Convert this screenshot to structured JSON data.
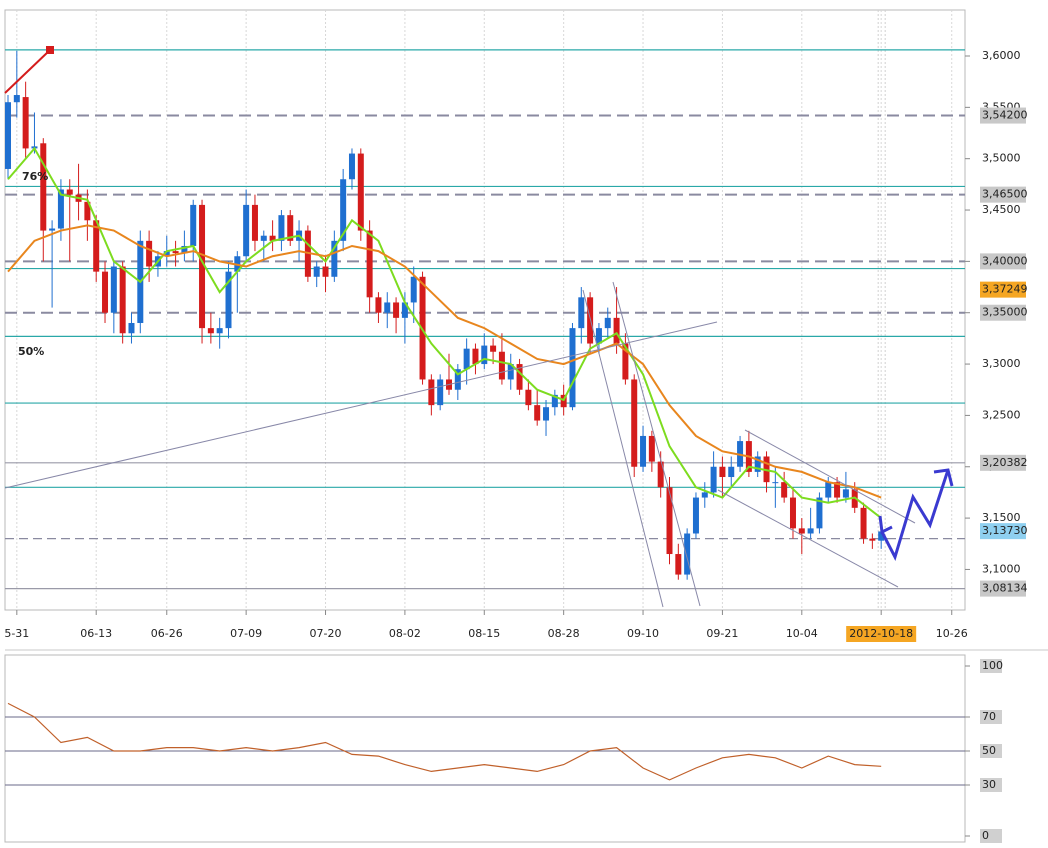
{
  "chart_data": [
    {
      "type": "candlestick",
      "categories": [
        null,
        "5-31",
        null,
        null,
        null,
        null,
        null,
        null,
        null,
        null,
        "06-13",
        null,
        null,
        null,
        null,
        null,
        null,
        null,
        "06-26",
        null,
        null,
        null,
        null,
        null,
        null,
        null,
        null,
        "07-09",
        null,
        null,
        null,
        null,
        null,
        null,
        null,
        null,
        "07-20",
        null,
        null,
        null,
        null,
        null,
        null,
        null,
        null,
        "08-02",
        null,
        null,
        null,
        null,
        null,
        null,
        null,
        null,
        "08-15",
        null,
        null,
        null,
        null,
        null,
        null,
        null,
        null,
        "08-28",
        null,
        null,
        null,
        null,
        null,
        null,
        null,
        null,
        "09-10",
        null,
        null,
        null,
        null,
        null,
        null,
        null,
        null,
        "09-21",
        null,
        null,
        null,
        null,
        null,
        null,
        null,
        null,
        "10-04",
        null,
        null,
        null,
        null,
        null,
        null,
        null,
        null,
        "2012-10-18",
        null,
        null,
        null,
        null,
        null,
        null,
        null,
        "10-26"
      ],
      "open": [
        3.49,
        3.555,
        3.56,
        3.51,
        3.515,
        3.43,
        3.432,
        3.47,
        3.465,
        3.458,
        3.44,
        3.39,
        3.35,
        3.395,
        3.33,
        3.34,
        3.42,
        3.395,
        3.405,
        3.41,
        3.408,
        3.415,
        3.455,
        3.335,
        3.33,
        3.335,
        3.39,
        3.405,
        3.455,
        3.42,
        3.425,
        3.42,
        3.445,
        3.42,
        3.43,
        3.385,
        3.395,
        3.385,
        3.42,
        3.48,
        3.505,
        3.43,
        3.365,
        3.35,
        3.36,
        3.345,
        3.36,
        3.385,
        3.285,
        3.26,
        3.285,
        3.275,
        3.295,
        3.315,
        3.3,
        3.318,
        3.312,
        3.285,
        3.3,
        3.275,
        3.26,
        3.245,
        3.258,
        3.27,
        3.258,
        3.335,
        3.365,
        3.32,
        3.335,
        3.345,
        3.32,
        3.285,
        3.2,
        3.23,
        3.205,
        3.18,
        3.115,
        3.095,
        3.135,
        3.17,
        3.175,
        3.2,
        3.19,
        3.2,
        3.225,
        3.195,
        3.21,
        3.185,
        3.185,
        3.17,
        3.14,
        3.135,
        3.14,
        3.17,
        3.185,
        3.17,
        3.178,
        3.16,
        3.13,
        3.128,
        null,
        null,
        null,
        null,
        null,
        null,
        null,
        null
      ],
      "high": [
        3.562,
        3.605,
        3.575,
        3.545,
        3.52,
        3.44,
        3.48,
        3.48,
        3.495,
        3.47,
        3.445,
        3.4,
        3.4,
        3.4,
        3.35,
        3.43,
        3.43,
        3.41,
        3.425,
        3.42,
        3.43,
        3.46,
        3.46,
        3.35,
        3.345,
        3.4,
        3.41,
        3.47,
        3.465,
        3.43,
        3.44,
        3.45,
        3.45,
        3.44,
        3.435,
        3.4,
        3.405,
        3.43,
        3.49,
        3.51,
        3.51,
        3.44,
        3.37,
        3.37,
        3.365,
        3.37,
        3.395,
        3.39,
        3.29,
        3.29,
        3.31,
        3.3,
        3.325,
        3.32,
        3.33,
        3.325,
        3.33,
        3.31,
        3.305,
        3.285,
        3.275,
        3.265,
        3.275,
        3.28,
        3.34,
        3.375,
        3.37,
        3.34,
        3.355,
        3.375,
        3.33,
        3.29,
        3.24,
        3.235,
        3.215,
        3.19,
        3.125,
        3.14,
        3.175,
        3.185,
        3.215,
        3.21,
        3.21,
        3.23,
        3.235,
        3.215,
        3.215,
        3.2,
        3.195,
        3.18,
        3.15,
        3.16,
        3.175,
        3.19,
        3.19,
        3.195,
        3.185,
        3.165,
        3.135,
        3.145,
        null,
        null,
        null,
        null,
        null,
        null,
        null,
        null
      ],
      "low": [
        3.48,
        3.54,
        3.5,
        3.505,
        3.4,
        3.355,
        3.42,
        3.4,
        3.44,
        3.42,
        3.38,
        3.34,
        3.33,
        3.32,
        3.32,
        3.33,
        3.38,
        3.385,
        3.395,
        3.395,
        3.4,
        3.4,
        3.32,
        3.32,
        3.315,
        3.325,
        3.35,
        3.4,
        3.41,
        3.4,
        3.41,
        3.41,
        3.415,
        3.4,
        3.38,
        3.375,
        3.37,
        3.38,
        3.41,
        3.47,
        3.42,
        3.35,
        3.34,
        3.335,
        3.33,
        3.32,
        3.34,
        3.28,
        3.25,
        3.255,
        3.27,
        3.265,
        3.28,
        3.29,
        3.295,
        3.3,
        3.28,
        3.275,
        3.27,
        3.255,
        3.24,
        3.23,
        3.25,
        3.25,
        3.255,
        3.32,
        3.31,
        3.31,
        3.325,
        3.31,
        3.28,
        3.19,
        3.195,
        3.195,
        3.17,
        3.105,
        3.09,
        3.09,
        3.13,
        3.16,
        3.17,
        3.17,
        3.18,
        3.195,
        3.19,
        3.19,
        3.175,
        3.16,
        3.165,
        3.13,
        3.115,
        3.13,
        3.135,
        3.165,
        3.165,
        3.165,
        3.155,
        3.125,
        3.12,
        3.12,
        null,
        null,
        null,
        null,
        null,
        null,
        null,
        null
      ],
      "close": [
        3.555,
        3.562,
        3.51,
        3.512,
        3.43,
        3.432,
        3.47,
        3.465,
        3.458,
        3.44,
        3.39,
        3.35,
        3.395,
        3.33,
        3.34,
        3.42,
        3.395,
        3.405,
        3.41,
        3.408,
        3.415,
        3.455,
        3.335,
        3.33,
        3.335,
        3.39,
        3.405,
        3.455,
        3.42,
        3.425,
        3.42,
        3.445,
        3.42,
        3.43,
        3.385,
        3.395,
        3.385,
        3.42,
        3.48,
        3.505,
        3.43,
        3.365,
        3.35,
        3.36,
        3.345,
        3.36,
        3.385,
        3.285,
        3.26,
        3.285,
        3.275,
        3.295,
        3.315,
        3.3,
        3.318,
        3.312,
        3.285,
        3.3,
        3.275,
        3.26,
        3.245,
        3.258,
        3.27,
        3.258,
        3.335,
        3.365,
        3.32,
        3.335,
        3.345,
        3.32,
        3.285,
        3.2,
        3.23,
        3.205,
        3.18,
        3.115,
        3.095,
        3.135,
        3.17,
        3.175,
        3.2,
        3.19,
        3.2,
        3.225,
        3.195,
        3.21,
        3.185,
        3.185,
        3.17,
        3.14,
        3.135,
        3.14,
        3.17,
        3.185,
        3.17,
        3.178,
        3.16,
        3.13,
        3.128,
        3.137,
        null,
        null,
        null,
        null,
        null,
        null,
        null,
        null
      ],
      "up_color": "#1f6fd0",
      "down_color": "#d41c1c",
      "overlays": [
        {
          "color": "#7ddc1f",
          "x": [
            0,
            3,
            6,
            9,
            12,
            15,
            18,
            21,
            24,
            27,
            30,
            33,
            36,
            39,
            42,
            45,
            48,
            51,
            54,
            57,
            60,
            63,
            66,
            69,
            72,
            75,
            78,
            81,
            84,
            87,
            90,
            93,
            96,
            99
          ],
          "values": [
            3.48,
            3.51,
            3.465,
            3.46,
            3.4,
            3.38,
            3.41,
            3.415,
            3.37,
            3.4,
            3.42,
            3.425,
            3.4,
            3.44,
            3.42,
            3.36,
            3.32,
            3.29,
            3.305,
            3.3,
            3.275,
            3.265,
            3.315,
            3.33,
            3.29,
            3.22,
            3.18,
            3.17,
            3.2,
            3.195,
            3.17,
            3.165,
            3.17,
            3.15
          ]
        },
        {
          "color": "#e8861e",
          "x": [
            0,
            3,
            6,
            9,
            12,
            15,
            18,
            21,
            24,
            27,
            30,
            33,
            36,
            39,
            42,
            45,
            48,
            51,
            54,
            57,
            60,
            63,
            66,
            69,
            72,
            75,
            78,
            81,
            84,
            87,
            90,
            93,
            96,
            99
          ],
          "values": [
            3.39,
            3.42,
            3.43,
            3.435,
            3.43,
            3.415,
            3.405,
            3.41,
            3.4,
            3.395,
            3.405,
            3.41,
            3.405,
            3.415,
            3.41,
            3.395,
            3.37,
            3.345,
            3.335,
            3.32,
            3.305,
            3.3,
            3.31,
            3.32,
            3.3,
            3.26,
            3.23,
            3.215,
            3.21,
            3.2,
            3.195,
            3.185,
            3.18,
            3.17
          ]
        }
      ],
      "hlines": [
        {
          "value": 3.606,
          "style": "solid",
          "color": "#2aa8a8"
        },
        {
          "value": 3.473,
          "style": "solid",
          "color": "#2aa8a8"
        },
        {
          "value": 3.393,
          "style": "solid",
          "color": "#2aa8a8"
        },
        {
          "value": 3.327,
          "style": "solid",
          "color": "#2aa8a8"
        },
        {
          "value": 3.262,
          "style": "solid",
          "color": "#2aa8a8"
        },
        {
          "value": 3.18,
          "style": "solid",
          "color": "#2aa8a8"
        },
        {
          "value": 3.13,
          "style": "dashed",
          "color": "#8a8aa0"
        }
      ],
      "levels": [
        {
          "value": 3.542,
          "label": "3,54200",
          "line": "dashed",
          "box": "#c8c8c8"
        },
        {
          "value": 3.465,
          "label": "3,46500",
          "line": "dashed",
          "box": "#c8c8c8"
        },
        {
          "value": 3.4,
          "label": "3,40000",
          "line": "dashed",
          "box": "#c8c8c8"
        },
        {
          "value": 3.37249,
          "label": "3,37249",
          "line": "none",
          "box": "#f5a623"
        },
        {
          "value": 3.35,
          "label": "3,35000",
          "line": "dashed",
          "box": "#c8c8c8"
        },
        {
          "value": 3.20382,
          "label": "3,20382",
          "line": "solid",
          "box": "#c8c8c8"
        },
        {
          "value": 3.1373,
          "label": "3,13730",
          "line": "none",
          "box": "#8fd0f0"
        },
        {
          "value": 3.08134,
          "label": "3,08134",
          "line": "solid",
          "box": "#c8c8c8"
        }
      ],
      "annotations": [
        "76%",
        "50%"
      ],
      "ylim": [
        3.0605,
        3.6448
      ],
      "yticks": [
        {
          "value": 3.6,
          "label": "3,6000"
        },
        {
          "value": 3.55,
          "label": "3,5500"
        },
        {
          "value": 3.5,
          "label": "3,5000"
        },
        {
          "value": 3.45,
          "label": "3,4500"
        },
        {
          "value": 3.4,
          "label": "3,4000"
        },
        {
          "value": 3.35,
          "label": "3,3500"
        },
        {
          "value": 3.3,
          "label": "3,3000"
        },
        {
          "value": 3.25,
          "label": "3,2500"
        },
        {
          "value": 3.2,
          "label": "3,2000"
        },
        {
          "value": 3.15,
          "label": "3,1500"
        },
        {
          "value": 3.1,
          "label": "3,1000"
        }
      ],
      "grid": true
    },
    {
      "type": "line",
      "x": [
        0,
        3,
        6,
        9,
        12,
        15,
        18,
        21,
        24,
        27,
        30,
        33,
        36,
        39,
        42,
        45,
        48,
        51,
        54,
        57,
        60,
        63,
        66,
        69,
        72,
        75,
        78,
        81,
        84,
        87,
        90,
        93,
        96,
        99
      ],
      "values": [
        78,
        70,
        55,
        58,
        50,
        50,
        52,
        52,
        50,
        52,
        50,
        52,
        55,
        48,
        47,
        42,
        38,
        40,
        42,
        40,
        38,
        42,
        50,
        52,
        40,
        33,
        40,
        46,
        48,
        46,
        40,
        47,
        42,
        41
      ],
      "color": "#c0602a",
      "ylim": [
        0,
        100
      ],
      "yticks": [
        100,
        70,
        50,
        30,
        0
      ],
      "gridlines": [
        70,
        50,
        30
      ]
    }
  ]
}
